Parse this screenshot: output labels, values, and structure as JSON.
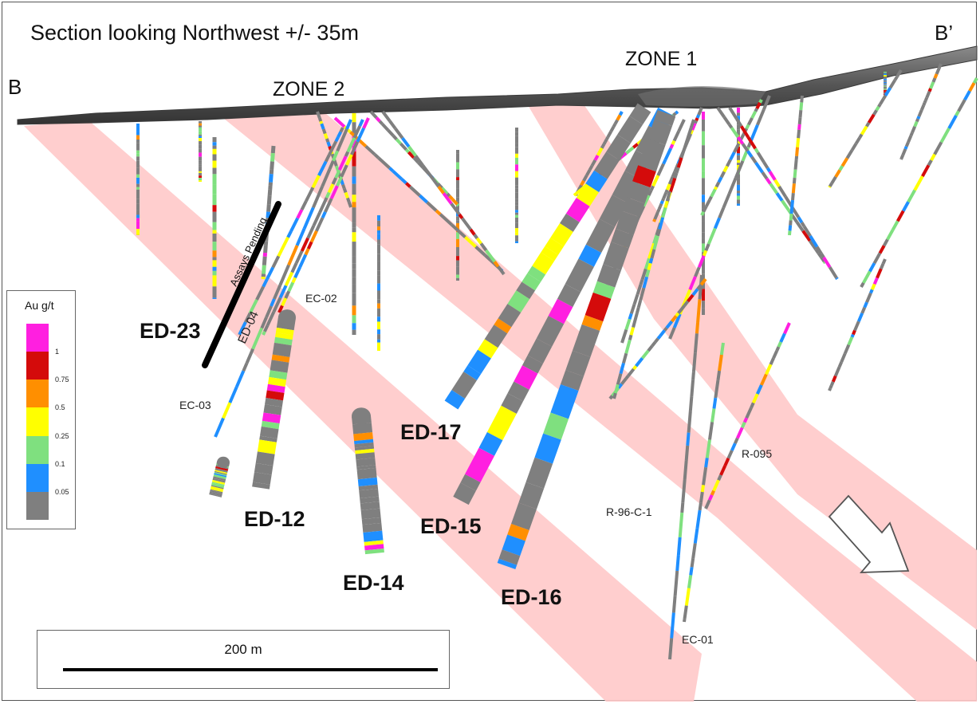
{
  "section": {
    "title": "Section looking Northwest +/- 35m",
    "end_left": "B",
    "end_right": "B’",
    "zone1": "ZONE 1",
    "zone2": "ZONE 2"
  },
  "drill_holes": {
    "ed23": "ED-23",
    "ed12": "ED-12",
    "ed14": "ED-14",
    "ed15": "ED-15",
    "ed16": "ED-16",
    "ed17": "ED-17",
    "ed04": "ED-04",
    "ec02": "EC-02",
    "ec03": "EC-03",
    "ec01": "EC-01",
    "r095": "R-095",
    "r96c1": "R-96-C-1",
    "assays_pending": "Assays Pending"
  },
  "legend": {
    "title": "Au g/t",
    "bins": [
      {
        "label": "1",
        "color": "#ff1fe0"
      },
      {
        "label": "0.75",
        "color": "#d40b0b"
      },
      {
        "label": "0.5",
        "color": "#ff8f00"
      },
      {
        "label": "0.25",
        "color": "#ffff00"
      },
      {
        "label": "0.1",
        "color": "#7fe07f"
      },
      {
        "label": "0.05",
        "color": "#1f8fff"
      },
      {
        "label": "",
        "color": "#7f7f7f"
      }
    ]
  },
  "scale": {
    "label": "200 m"
  },
  "colors": {
    "zone_band": "#ffc9c9",
    "topography": "#5e5e5e"
  }
}
